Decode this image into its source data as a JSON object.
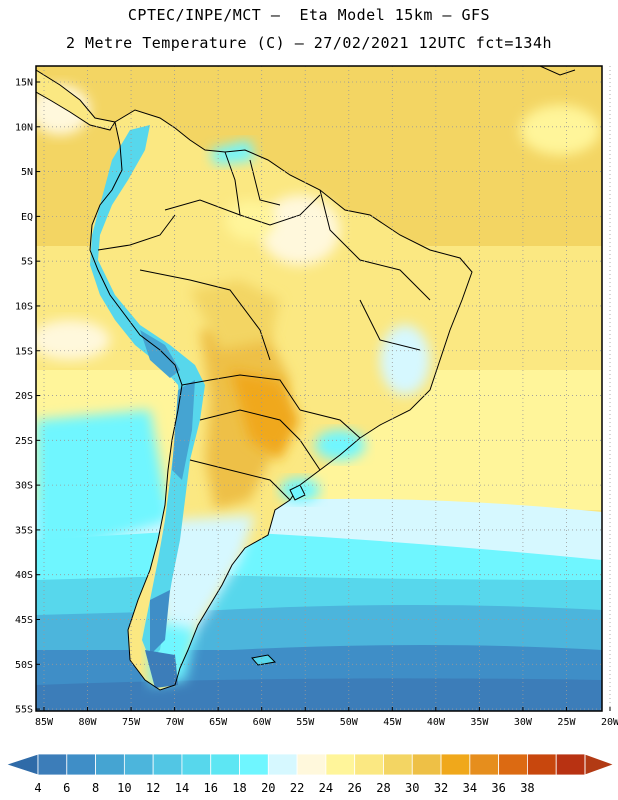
{
  "header": {
    "line1": "CPTEC/INPE/MCT –  Eta Model 15km – GFS",
    "line2": "2 Metre Temperature (C) – 27/02/2021 12UTC fct=134h"
  },
  "map": {
    "lat_labels": [
      "15N",
      "10N",
      "5N",
      "EQ",
      "5S",
      "10S",
      "15S",
      "20S",
      "25S",
      "30S",
      "35S",
      "40S",
      "45S",
      "50S",
      "55S"
    ],
    "lon_labels": [
      "85W",
      "80W",
      "75W",
      "70W",
      "65W",
      "60W",
      "55W",
      "50W",
      "45W",
      "40W",
      "35W",
      "30W",
      "25W",
      "20W"
    ],
    "lat_range": [
      15,
      -57
    ],
    "lon_range": [
      -85,
      -20
    ],
    "grid": true
  },
  "colorbar": {
    "ticks": [
      "4",
      "6",
      "8",
      "10",
      "12",
      "14",
      "16",
      "18",
      "20",
      "22",
      "24",
      "26",
      "28",
      "30",
      "32",
      "34",
      "36",
      "38"
    ],
    "colors": [
      "#3c7db9",
      "#3f8ec7",
      "#45a4d2",
      "#4cb5dc",
      "#52c6e4",
      "#57d7ec",
      "#5de6f3",
      "#6ff6ff",
      "#d6f8ff",
      "#fff8dc",
      "#fff59a",
      "#fbe882",
      "#f3d563",
      "#eec046",
      "#f0a81b",
      "#e68e1d",
      "#dc6a12",
      "#c8470d",
      "#b83212"
    ],
    "under_color": "#2f6ba8",
    "over_color": "#b23a14"
  }
}
